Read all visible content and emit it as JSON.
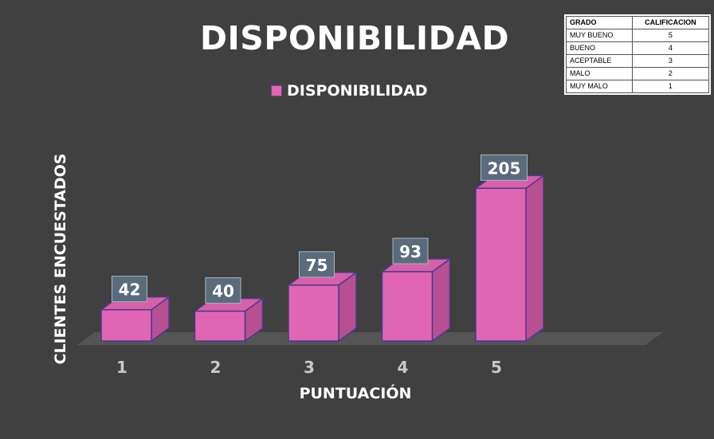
{
  "chart_data": {
    "type": "bar",
    "title": "DISPONIBILIDAD",
    "xlabel": "PUNTUACIÓN",
    "ylabel": "CLIENTES ENCUESTADOS",
    "categories": [
      "1",
      "2",
      "3",
      "4",
      "5"
    ],
    "series": [
      {
        "name": "DISPONIBILIDAD",
        "values": [
          42,
          40,
          75,
          93,
          205
        ]
      }
    ],
    "ylim": [
      0,
      220
    ],
    "grid": false,
    "legend": "top-center",
    "three_d": true,
    "colors": {
      "bar_front": "#e066b4",
      "bar_side": "#b84f93",
      "bar_top": "#d760a8",
      "bar_edge": "#4a3a8c",
      "floor": "#555555",
      "label_box": "#5a6b7c"
    }
  },
  "grade_table": {
    "headers": [
      "GRADO",
      "CALIFICACION"
    ],
    "rows": [
      [
        "MUY BUENO",
        "5"
      ],
      [
        "BUENO",
        "4"
      ],
      [
        "ACEPTABLE",
        "3"
      ],
      [
        "MALO",
        "2"
      ],
      [
        "MUY MALO",
        "1"
      ]
    ]
  }
}
